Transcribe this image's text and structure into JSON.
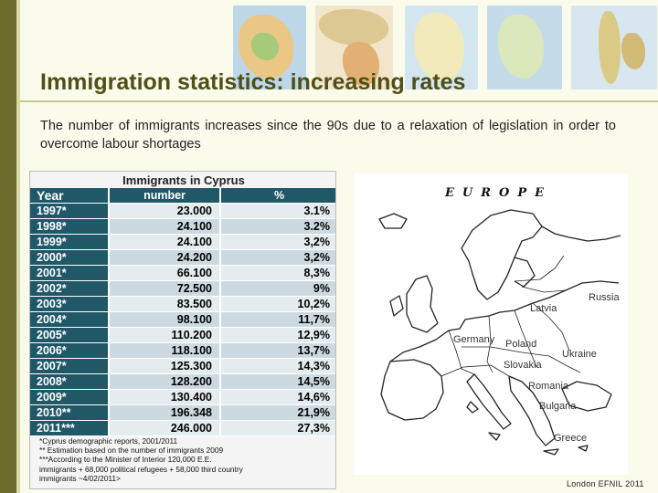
{
  "slide": {
    "title": "Immigration statistics: increasing rates",
    "intro": "The number of immigrants increases since the 90s due to a relaxation of legislation in order to overcome labour shortages",
    "footer": "London EFNIL 2011",
    "colors": {
      "title": "#4f4f16",
      "background": "#fbfbec",
      "sidebar": "#6b6b2e",
      "table_header": "#215868"
    }
  },
  "table": {
    "caption": "Immigrants in Cyprus",
    "headers": [
      "Year",
      "number",
      "%"
    ],
    "rows": [
      [
        "1997*",
        "23.000",
        "3.1%"
      ],
      [
        "1998*",
        "24.100",
        "3.2%"
      ],
      [
        "1999*",
        "24.100",
        "3,2%"
      ],
      [
        "2000*",
        "24.200",
        "3,2%"
      ],
      [
        "2001*",
        "66.100",
        "8,3%"
      ],
      [
        "2002*",
        "72.500",
        "9%"
      ],
      [
        "2003*",
        "83.500",
        "10,2%"
      ],
      [
        "2004*",
        "98.100",
        "11,7%"
      ],
      [
        "2005*",
        "110.200",
        "12,9%"
      ],
      [
        "2006*",
        "118.100",
        "13,7%"
      ],
      [
        "2007*",
        "125.300",
        "14,3%"
      ],
      [
        "2008*",
        "128.200",
        "14,5%"
      ],
      [
        "2009*",
        "130.400",
        "14,6%"
      ],
      [
        "2010**",
        "196.348",
        "21,9%"
      ],
      [
        "2011***",
        "246.000",
        "27,3%"
      ]
    ],
    "notes": [
      "*Cyprus demographic reports, 2001/2011",
      "** Estimation based on the number of immigrants 2009",
      "***According to the Minister of Interior 120,000 E.E.",
      "immigrants + 68,000 political refugees + 58,000 third country",
      "immigrants ~4/02/2011>"
    ]
  },
  "map": {
    "title": "EUROPE",
    "countries": {
      "russia": "Russia",
      "latvia": "Latvia",
      "germany": "Germany",
      "poland": "Poland",
      "ukraine": "Ukraine",
      "slovakia": "Slovakia",
      "romania": "Romania",
      "bulgaria": "Bulgaria",
      "greece": "Greece"
    }
  }
}
